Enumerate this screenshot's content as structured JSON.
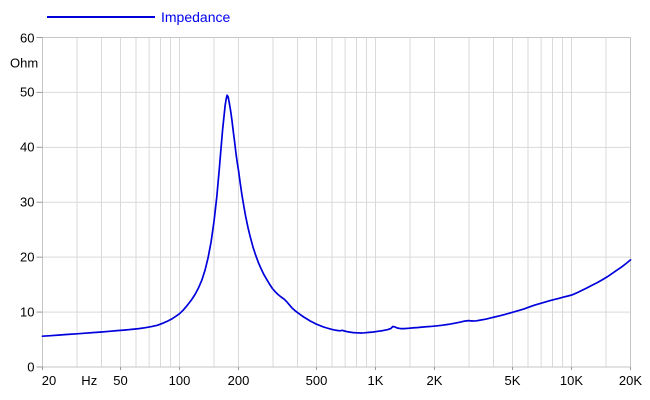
{
  "legend": {
    "label": "Impedance",
    "color": "#0000ee"
  },
  "chart_data": {
    "type": "line",
    "title": "",
    "background": "#ffffff",
    "grid_color": "#d9d9d9",
    "frame_color": "#c6c6c6",
    "tick_color": "#999999",
    "label_color": "#000000",
    "x_axis": {
      "scale": "log",
      "range": [
        20,
        20000
      ],
      "unit": "Hz",
      "tick_labels": [
        {
          "text": "20",
          "f": 20,
          "edge": "left"
        },
        {
          "text": "Hz",
          "between": [
            30,
            40
          ],
          "is_unit": true
        },
        {
          "text": "50",
          "f": 50
        },
        {
          "text": "100",
          "f": 100
        },
        {
          "text": "200",
          "f": 200
        },
        {
          "text": "500",
          "f": 500
        },
        {
          "text": "1K",
          "f": 1000
        },
        {
          "text": "2K",
          "f": 2000
        },
        {
          "text": "5K",
          "f": 5000
        },
        {
          "text": "10K",
          "f": 10000
        },
        {
          "text": "20K",
          "f": 20000
        }
      ],
      "gridlines": [
        30,
        40,
        50,
        60,
        70,
        80,
        90,
        100,
        150,
        200,
        300,
        400,
        500,
        600,
        700,
        800,
        900,
        1000,
        1500,
        2000,
        3000,
        4000,
        5000,
        6000,
        7000,
        8000,
        9000,
        10000,
        15000,
        20000
      ]
    },
    "y_axis": {
      "scale": "linear",
      "range": [
        0,
        60
      ],
      "unit": "Ohm",
      "ticks": [
        0,
        10,
        20,
        30,
        40,
        50,
        60
      ],
      "gridlines": [
        10,
        20,
        30,
        40,
        50
      ]
    },
    "series": [
      {
        "name": "Impedance",
        "color": "#0000dd",
        "points": [
          [
            20,
            5.6
          ],
          [
            22,
            5.7
          ],
          [
            24,
            5.8
          ],
          [
            27,
            5.93
          ],
          [
            30,
            6.05
          ],
          [
            33,
            6.16
          ],
          [
            36,
            6.26
          ],
          [
            40,
            6.38
          ],
          [
            44,
            6.5
          ],
          [
            48,
            6.62
          ],
          [
            52,
            6.72
          ],
          [
            57,
            6.85
          ],
          [
            62,
            7.0
          ],
          [
            67,
            7.15
          ],
          [
            72,
            7.35
          ],
          [
            77,
            7.6
          ],
          [
            82,
            7.95
          ],
          [
            87,
            8.35
          ],
          [
            92,
            8.82
          ],
          [
            96,
            9.25
          ],
          [
            100,
            9.7
          ],
          [
            105,
            10.45
          ],
          [
            110,
            11.3
          ],
          [
            115,
            12.2
          ],
          [
            120,
            13.2
          ],
          [
            125,
            14.4
          ],
          [
            130,
            15.8
          ],
          [
            135,
            17.6
          ],
          [
            140,
            19.9
          ],
          [
            145,
            22.8
          ],
          [
            150,
            26.5
          ],
          [
            155,
            31.0
          ],
          [
            160,
            36.5
          ],
          [
            163,
            40.0
          ],
          [
            166,
            43.2
          ],
          [
            169,
            46.0
          ],
          [
            171,
            47.7
          ],
          [
            173,
            48.8
          ],
          [
            175,
            49.5
          ],
          [
            177,
            49.2
          ],
          [
            179,
            48.3
          ],
          [
            182,
            46.8
          ],
          [
            185,
            45.0
          ],
          [
            188,
            43.0
          ],
          [
            191,
            41.0
          ],
          [
            194,
            39.0
          ],
          [
            197,
            37.3
          ],
          [
            200,
            35.8
          ],
          [
            204,
            33.5
          ],
          [
            208,
            31.5
          ],
          [
            213,
            29.2
          ],
          [
            218,
            27.3
          ],
          [
            224,
            25.3
          ],
          [
            230,
            23.6
          ],
          [
            237,
            21.9
          ],
          [
            244,
            20.5
          ],
          [
            252,
            19.1
          ],
          [
            260,
            18.0
          ],
          [
            269,
            16.9
          ],
          [
            278,
            16.0
          ],
          [
            288,
            15.1
          ],
          [
            298,
            14.3
          ],
          [
            308,
            13.7
          ],
          [
            318,
            13.2
          ],
          [
            330,
            12.75
          ],
          [
            342,
            12.35
          ],
          [
            352,
            11.9
          ],
          [
            362,
            11.4
          ],
          [
            374,
            10.8
          ],
          [
            387,
            10.3
          ],
          [
            400,
            9.9
          ],
          [
            415,
            9.5
          ],
          [
            430,
            9.1
          ],
          [
            446,
            8.75
          ],
          [
            463,
            8.4
          ],
          [
            481,
            8.1
          ],
          [
            500,
            7.8
          ],
          [
            520,
            7.55
          ],
          [
            542,
            7.3
          ],
          [
            565,
            7.1
          ],
          [
            590,
            6.9
          ],
          [
            615,
            6.75
          ],
          [
            640,
            6.65
          ],
          [
            660,
            6.6
          ],
          [
            676,
            6.68
          ],
          [
            695,
            6.55
          ],
          [
            715,
            6.45
          ],
          [
            740,
            6.35
          ],
          [
            770,
            6.27
          ],
          [
            800,
            6.22
          ],
          [
            840,
            6.2
          ],
          [
            880,
            6.22
          ],
          [
            925,
            6.3
          ],
          [
            975,
            6.38
          ],
          [
            1030,
            6.5
          ],
          [
            1090,
            6.62
          ],
          [
            1150,
            6.8
          ],
          [
            1195,
            7.0
          ],
          [
            1225,
            7.38
          ],
          [
            1255,
            7.3
          ],
          [
            1290,
            7.1
          ],
          [
            1340,
            7.0
          ],
          [
            1400,
            7.0
          ],
          [
            1470,
            7.05
          ],
          [
            1550,
            7.12
          ],
          [
            1650,
            7.2
          ],
          [
            1750,
            7.28
          ],
          [
            1850,
            7.35
          ],
          [
            1950,
            7.42
          ],
          [
            2070,
            7.5
          ],
          [
            2200,
            7.62
          ],
          [
            2350,
            7.75
          ],
          [
            2520,
            7.95
          ],
          [
            2700,
            8.15
          ],
          [
            2850,
            8.35
          ],
          [
            2980,
            8.45
          ],
          [
            3120,
            8.38
          ],
          [
            3280,
            8.42
          ],
          [
            3450,
            8.55
          ],
          [
            3650,
            8.7
          ],
          [
            3850,
            8.9
          ],
          [
            4050,
            9.1
          ],
          [
            4300,
            9.32
          ],
          [
            4550,
            9.55
          ],
          [
            4800,
            9.78
          ],
          [
            5100,
            10.05
          ],
          [
            5400,
            10.3
          ],
          [
            5750,
            10.6
          ],
          [
            6100,
            10.95
          ],
          [
            6500,
            11.28
          ],
          [
            6900,
            11.55
          ],
          [
            7300,
            11.8
          ],
          [
            7700,
            12.05
          ],
          [
            8100,
            12.25
          ],
          [
            8600,
            12.5
          ],
          [
            9100,
            12.72
          ],
          [
            9600,
            12.92
          ],
          [
            10100,
            13.15
          ],
          [
            10700,
            13.55
          ],
          [
            11300,
            13.95
          ],
          [
            12000,
            14.4
          ],
          [
            12700,
            14.85
          ],
          [
            13500,
            15.35
          ],
          [
            14300,
            15.85
          ],
          [
            15200,
            16.4
          ],
          [
            16100,
            17.0
          ],
          [
            17000,
            17.6
          ],
          [
            18000,
            18.2
          ],
          [
            19000,
            18.85
          ],
          [
            20000,
            19.5
          ]
        ]
      }
    ]
  }
}
